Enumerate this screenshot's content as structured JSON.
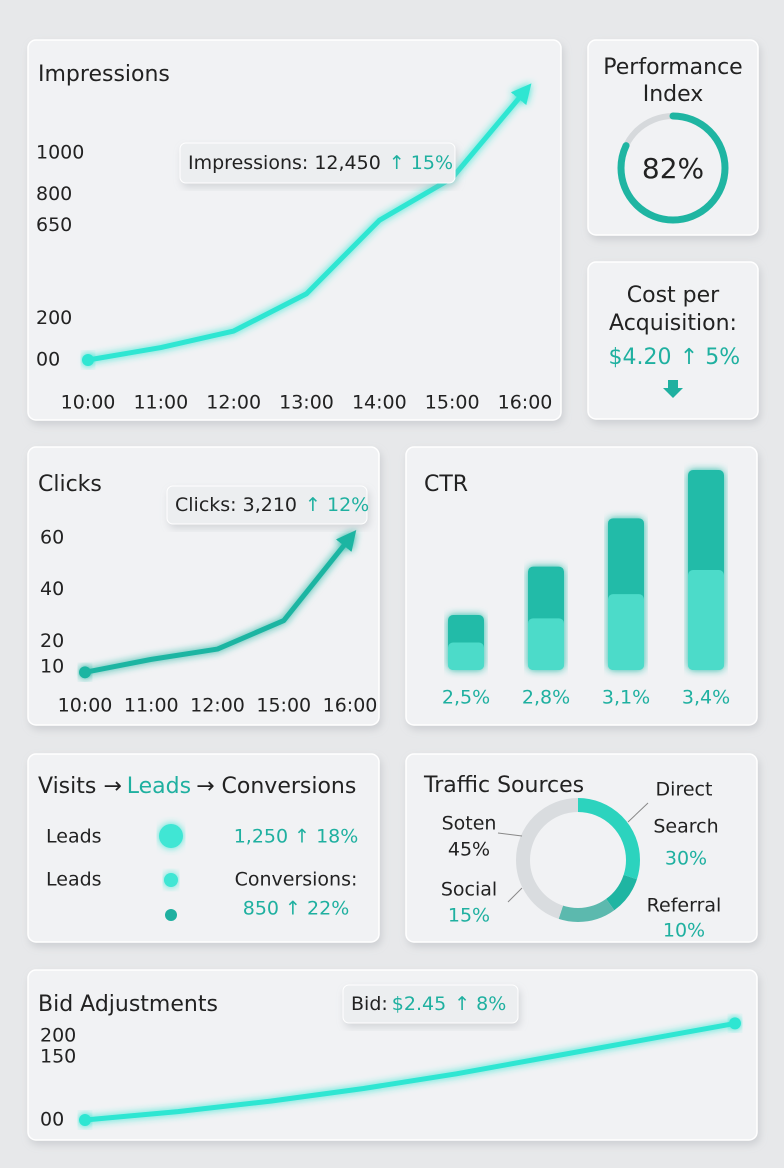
{
  "chart_data": [
    {
      "type": "line",
      "title": "Impressions",
      "categories": [
        "10:00",
        "11:00",
        "12:00",
        "13:00",
        "14:00",
        "15:00",
        "16:00"
      ],
      "values": [
        0,
        60,
        140,
        320,
        675,
        880,
        1300
      ],
      "color": "#2ee6d2",
      "ylim": [
        0,
        1300
      ],
      "yticks": [
        {
          "value": 0,
          "label": "00"
        },
        200,
        650,
        800,
        1000
      ],
      "annotation": {
        "text": "Impressions: 12,450",
        "change": "↑ 15%"
      }
    },
    {
      "type": "line",
      "title": "Clicks",
      "categories": [
        "10:00",
        "11:00",
        "12:00",
        "15:00",
        "16:00"
      ],
      "values": [
        8,
        13,
        17,
        28,
        60
      ],
      "color": "#1fb5a2",
      "ylim": [
        0,
        70
      ],
      "yticks": [
        10,
        20,
        40,
        60
      ],
      "annotation": {
        "text": "Clicks: 3,210",
        "change": "↑ 12%"
      }
    },
    {
      "type": "bar",
      "title": "CTR",
      "values": [
        2.5,
        2.8,
        3.1,
        3.4
      ],
      "value_labels": [
        "2,5%",
        "2,8%",
        "3,1%",
        "3,4%"
      ],
      "color": "#22bba8"
    },
    {
      "type": "pie",
      "title": "Traffic Sources",
      "categories": [
        "Search",
        "Referral",
        "Social",
        "Soten"
      ],
      "values": [
        30,
        10,
        15,
        45
      ],
      "value_labels": [
        "30%",
        "10%",
        "15%",
        "45%"
      ],
      "colors": [
        "#2cd3be",
        "#1fb5a2",
        "#5cb9ae",
        "#d9dcdf"
      ],
      "annotation": "Direct"
    },
    {
      "type": "line",
      "title": "Bid Adjustments",
      "values": [
        0,
        20,
        45,
        75,
        110,
        150,
        190,
        230
      ],
      "color": "#2ee6d2",
      "ylim": [
        0,
        250
      ],
      "yticks": [
        {
          "value": 0,
          "label": "00"
        },
        150,
        200
      ],
      "annotation": {
        "label": "Bid:",
        "text": "$2.45",
        "change": "↑ 8%"
      }
    }
  ],
  "performance": {
    "title_lines": [
      "Performance",
      "Index"
    ],
    "value": 82,
    "value_label": "82%"
  },
  "cost_per_acquisition": {
    "title_lines": [
      "Cost per",
      "Acquisition:"
    ],
    "value": "$4.20",
    "change": "↑ 5%"
  },
  "funnel": {
    "title": [
      "Visits →",
      "Leads",
      "→ Conversions"
    ],
    "rows": [
      {
        "label": "Leads",
        "value": "1,250 ↑ 18%"
      },
      {
        "label": "Leads",
        "value": "Conversions:"
      },
      {
        "value": "850 ↑ 22%"
      }
    ]
  }
}
